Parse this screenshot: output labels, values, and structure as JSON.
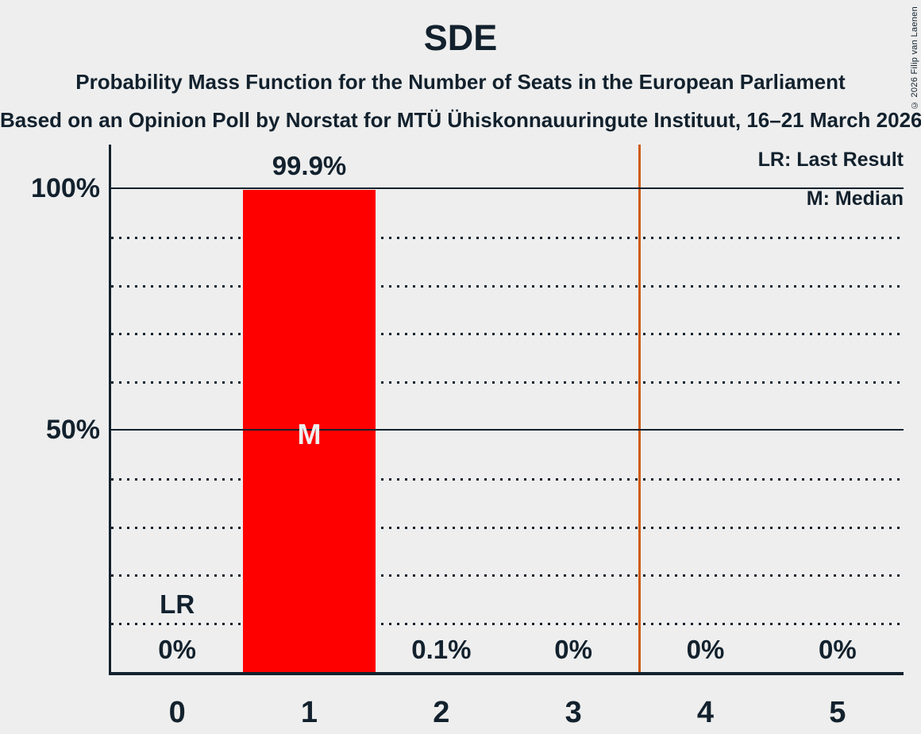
{
  "title": "SDE",
  "subtitle": "Probability Mass Function for the Number of Seats in the European Parliament",
  "source_line": "Based on an Opinion Poll by Norstat for MTÜ Ühiskonnauuringute Instituut, 16–21 March 2026",
  "copyright_notice": "© 2026 Filip van Laenen",
  "legend": {
    "last_result": "LR: Last Result",
    "median": "M: Median"
  },
  "colors": {
    "background": "#EEEEEE",
    "text": "#12212D",
    "bar": "#FF0000",
    "bar_label": "#EEEEEE",
    "threshold_line": "#CD5B12"
  },
  "chart_data": {
    "type": "bar",
    "categories": [
      "0",
      "1",
      "2",
      "3",
      "4",
      "5"
    ],
    "values": [
      0,
      99.9,
      0.1,
      0,
      0,
      0
    ],
    "value_labels": [
      "0%",
      "99.9%",
      "0.1%",
      "0%",
      "0%",
      "0%"
    ],
    "title": "SDE",
    "ylabel": "",
    "xlabel": "",
    "ylim": [
      0,
      109
    ],
    "yticks": [
      {
        "value": 100,
        "label": "100%"
      },
      {
        "value": 50,
        "label": "50%"
      }
    ],
    "dotted_gridlines": [
      90,
      80,
      70,
      60,
      40,
      30,
      20,
      10
    ],
    "median_marker": {
      "text": "M",
      "seat_index": 1
    },
    "last_result_marker": {
      "text": "LR",
      "seat_index": 0
    },
    "threshold_line_x": 3.5,
    "grid": "horizontal dotted every 10%, solid at 50% and 100%",
    "legend_position": "top-right"
  }
}
